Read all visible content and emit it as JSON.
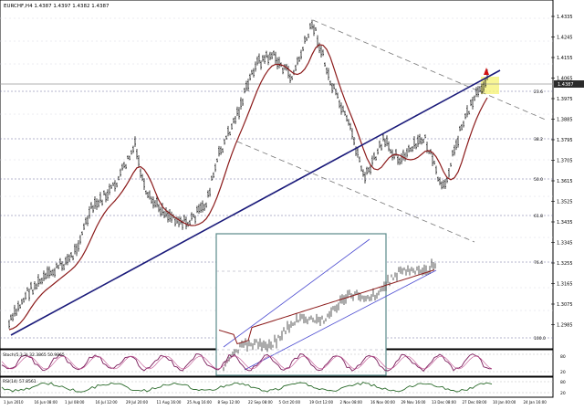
{
  "header": {
    "symbol_line": "EURCHF,H4  1.4387 1.4397 1.4382 1.4387"
  },
  "colors": {
    "price_bars": "#111111",
    "moving_average": "#8b1a1a",
    "trendline": "#1a1a7a",
    "channel": "#777777",
    "fib_lines": "#9a9ab0",
    "highlight": "#f6f27a",
    "price_tag_bg": "#2b2b2b",
    "oscillator_1": "#7a1a5a",
    "oscillator_2": "#2a6a2a",
    "inset_border": "#5a8a8a"
  },
  "price_axis_labels": [
    "1.4335",
    "1.4245",
    "1.4155",
    "1.4065",
    "1.3975",
    "1.3885",
    "1.3795",
    "1.3705",
    "1.3615",
    "1.3525",
    "1.3435",
    "1.3345",
    "1.3255",
    "1.3165",
    "1.3075",
    "1.2985"
  ],
  "current_price_label": "1.4387",
  "fib_labels": [
    "23.6",
    "38.2",
    "50.0",
    "61.8",
    "76.4",
    "100.0"
  ],
  "oscillator1": {
    "title": "Stoch(5,3,3) 32.3865 50.9865",
    "axis_labels": [
      "80",
      "20"
    ]
  },
  "oscillator2": {
    "title": "RSI(14) 57.8561",
    "axis_labels": [
      "80",
      "20"
    ]
  },
  "time_axis_labels": [
    "1 Jun 2010",
    "16 Jun 08:00",
    "1 Jul 08:00",
    "16 Jul 12:00",
    "29 Jul 20:00",
    "11 Aug 16:00",
    "25 Aug 16:00",
    "8 Sep 12:00",
    "22 Sep 08:00",
    "5 Oct 20:00",
    "19 Oct 12:00",
    "2 Nov 08:00",
    "16 Nov 00:00",
    "29 Nov 16:00",
    "13 Dec 08:00",
    "27 Dec 08:00",
    "10 Jan 00:00",
    "24 Jan 16:00"
  ]
}
